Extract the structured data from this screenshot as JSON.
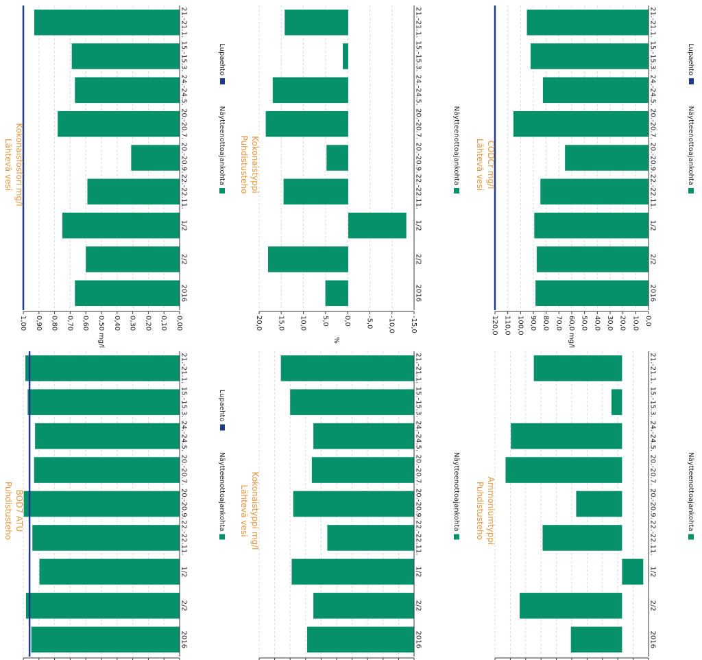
{
  "colors": {
    "bar": "#07916B",
    "limit": "#1F3A8A",
    "title": "#E8953A",
    "grid": "#d9d9d9",
    "axis": "#333333"
  },
  "chart_data": [
    {
      "id": "bod7",
      "type": "bar",
      "title": [
        "Puhdistusteho",
        "BOD7 ATU"
      ],
      "ylabel": "",
      "categories": [
        "21.-21.1.",
        "15.-15.3.",
        "24.-24.5.",
        "20.-20.7.",
        "20.-20.9.",
        "22.-22.11.",
        "1/2",
        "2/2",
        "2016"
      ],
      "series": [
        {
          "name": "Näytteenottoajankohta",
          "values": [
            98.7,
            97.2,
            92.5,
            93.1,
            99.7,
            94.2,
            89.7,
            98.3,
            94.9
          ]
        },
        {
          "name": "Lupaehto",
          "kind": "limit",
          "value": 96
        }
      ],
      "ylim": [
        0,
        100
      ],
      "yticks": [],
      "grid": true,
      "legend": "bottom"
    },
    {
      "id": "kokp",
      "type": "bar",
      "title": [
        "Lähtevä vesi",
        "Kokonaisfosfori mg/l"
      ],
      "ylabel": "mg/l",
      "categories": [
        "21.-21.1.",
        "15.-15.3.",
        "24.-24.5.",
        "20.-20.7.",
        "20.-20.9.",
        "22.-22.11.",
        "1/2",
        "2/2",
        "2016"
      ],
      "series": [
        {
          "name": "Näytteenottoajankohta",
          "values": [
            0.93,
            0.69,
            0.67,
            0.78,
            0.31,
            0.59,
            0.75,
            0.6,
            0.67
          ]
        },
        {
          "name": "Lupaehto",
          "kind": "limit",
          "value": 1.0
        }
      ],
      "ylim": [
        0,
        1
      ],
      "yticks": [
        "0,00",
        "0,10",
        "0,20",
        "0,30",
        "0,40",
        "0,50",
        "0,60",
        "0,70",
        "0,80",
        "0,90",
        "1,00"
      ],
      "grid": true,
      "legend": "bottom"
    },
    {
      "id": "kokn_l",
      "type": "bar",
      "title": [
        "Lähtevä vesi",
        "Kokonaistyppi mg/l"
      ],
      "ylabel": "",
      "categories": [
        "21.-21.1.",
        "15.-15.3.",
        "24.-24.5.",
        "20.-20.7.",
        "20.-20.9.",
        "22.-22.11.",
        "1/2",
        "2/2",
        "2016"
      ],
      "series": [
        {
          "name": "Näytteenottoajankohta",
          "values": [
            86,
            80,
            65,
            66,
            78,
            56,
            79,
            65,
            69
          ]
        }
      ],
      "ylim": [
        0,
        100
      ],
      "yticks": [],
      "grid": true,
      "legend": "bottom"
    },
    {
      "id": "kokn_p",
      "type": "bar",
      "title": [
        "Puhdistusteho",
        "Kokonaistyppi"
      ],
      "ylabel": "%",
      "categories": [
        "21.-21.1.",
        "15.-15.3.",
        "24.-24.5.",
        "20.-20.7.",
        "20.-20.9.",
        "22.-22.11.",
        "1/2",
        "2/2",
        "2016"
      ],
      "series": [
        {
          "name": "Näytteenottoajankohta",
          "values": [
            16.4,
            1.4,
            19.5,
            21.3,
            5.6,
            16.7,
            -15.0,
            20.7,
            5.9
          ]
        }
      ],
      "ylim": [
        -17,
        23
      ],
      "yticks": [
        "-15,0",
        "-10,0",
        "-5,0",
        "0,0",
        "5,0",
        "10,0",
        "15,0",
        "20,0"
      ],
      "grid": true,
      "legend": "bottom"
    },
    {
      "id": "nh4",
      "type": "bar",
      "title": [
        "Puhdistusteho",
        "Ammoniumtyppi"
      ],
      "ylabel": "",
      "categories": [
        "21.-21.1.",
        "15.-15.3.",
        "24.-24.5.",
        "20.-20.7.",
        "20.-20.9.",
        "22.-22.11.",
        "1/2",
        "2/2",
        "2016"
      ],
      "series": [
        {
          "name": "Näytteenottoajankohta",
          "values": [
            50,
            6,
            63,
            66,
            26,
            45,
            -12,
            58,
            29
          ]
        }
      ],
      "ylim": [
        -15,
        72
      ],
      "yticks": [],
      "grid": true,
      "legend": "bottom"
    },
    {
      "id": "codcr",
      "type": "bar",
      "title": [
        "Lähtevä vesi",
        "CODCr mg/l"
      ],
      "ylabel": "mg/l",
      "categories": [
        "21.-21.1.",
        "15.-15.3.",
        "24.-24.5.",
        "20.-20.7.",
        "20.-20.9.",
        "22.-22.11.",
        "1/2",
        "2/2",
        "2016"
      ],
      "series": [
        {
          "name": "Näytteenottoajankohta",
          "values": [
            99,
            96,
            86,
            110,
            68,
            88,
            93,
            91,
            92
          ]
        },
        {
          "name": "Lupaehto",
          "kind": "limit",
          "value": 125
        }
      ],
      "ylim": [
        0,
        125
      ],
      "yticks": [
        "0,0",
        "10,0",
        "20,0",
        "30,0",
        "40,0",
        "50,0",
        "60,0",
        "70,0",
        "80,0",
        "90,0",
        "100,0",
        "110,0",
        "120,0"
      ],
      "grid": true,
      "legend": "bottom"
    }
  ]
}
